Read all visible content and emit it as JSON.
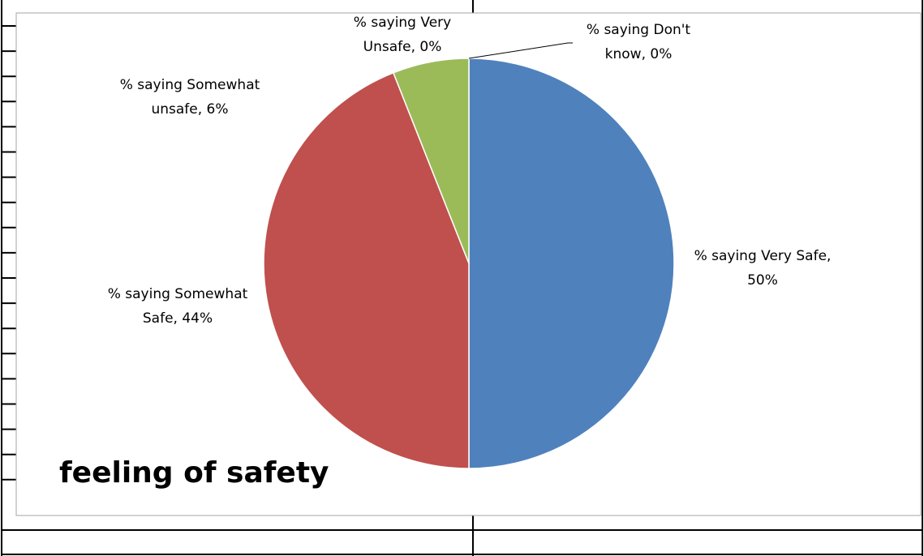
{
  "chart_data": {
    "type": "pie",
    "title": "feeling of safety",
    "slices": [
      {
        "label_lines": [
          "% saying Very Safe,",
          "50%"
        ],
        "value": 50,
        "color": "#4f81bd"
      },
      {
        "label_lines": [
          "% saying Somewhat",
          "Safe, 44%"
        ],
        "value": 44,
        "color": "#c0504d"
      },
      {
        "label_lines": [
          "% saying Somewhat",
          "unsafe, 6%"
        ],
        "value": 6,
        "color": "#9bbb59"
      },
      {
        "label_lines": [
          "% saying Very",
          "Unsafe, 0%"
        ],
        "value": 0,
        "color": "#8064a2"
      },
      {
        "label_lines": [
          "% saying Don't",
          "know, 0%"
        ],
        "value": 0,
        "color": "#4bacc6"
      }
    ],
    "start_angle_deg": 0,
    "direction": "clockwise",
    "legend": "none"
  }
}
